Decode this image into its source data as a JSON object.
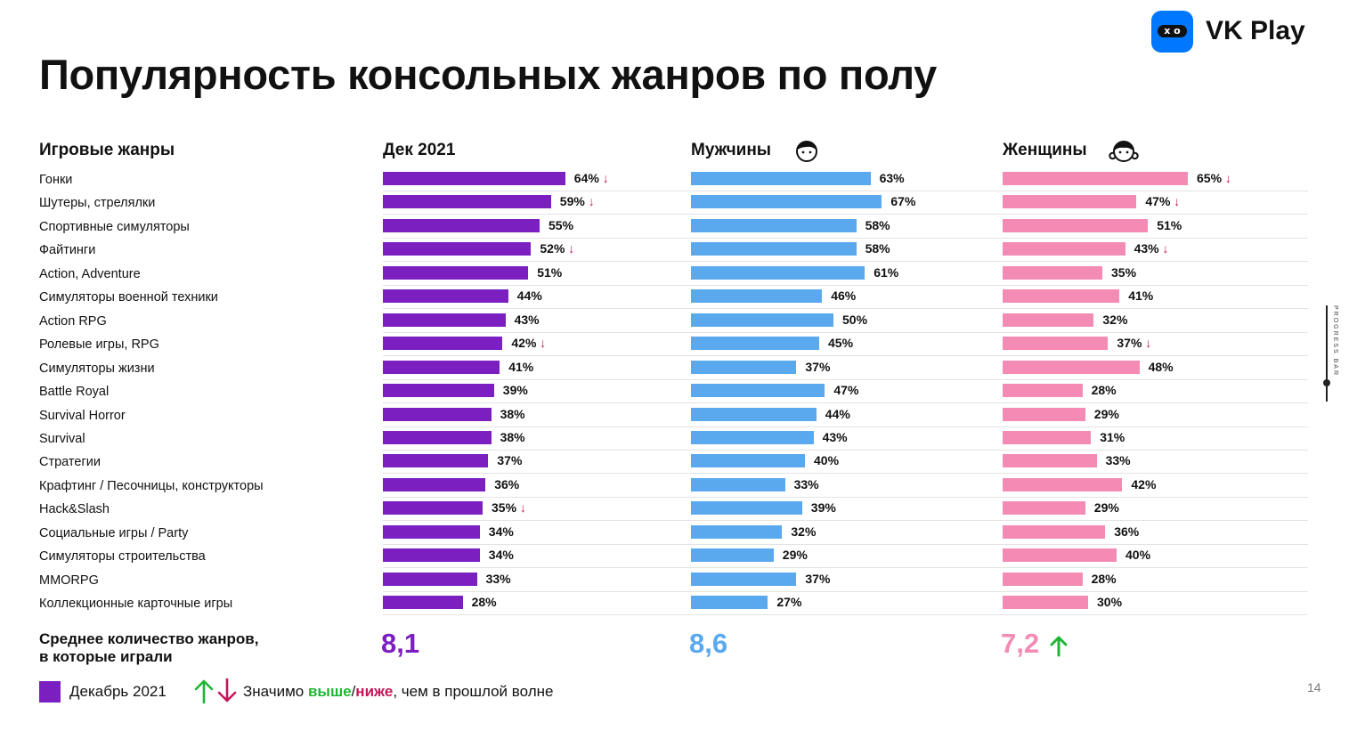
{
  "title": "Популярность консольных жанров по полу",
  "logo": {
    "text": "VK Play",
    "icon": "vk-play-logo-icon",
    "brand_color": "#0077ff"
  },
  "columns": {
    "genres_header": "Игровые жанры",
    "dec_header": "Дек 2021",
    "men_header": "Мужчины",
    "women_header": "Женщины",
    "men_icon": "man-face-icon",
    "women_icon": "woman-face-icon"
  },
  "colors": {
    "dec": "#7b1fc0",
    "men": "#5aa9ee",
    "women": "#f48bb5",
    "up": "#1fb533",
    "down": "#c2185b"
  },
  "chart_data": {
    "type": "bar",
    "orientation": "horizontal",
    "categories": [
      "Гонки",
      "Шутеры, стрелялки",
      "Спортивные симуляторы",
      "Файтинги",
      "Action, Adventure",
      "Симуляторы военной техники",
      "Action RPG",
      "Ролевые игры, RPG",
      "Симуляторы жизни",
      "Battle Royal",
      "Survival Horror",
      "Survival",
      "Стратегии",
      "Крафтинг / Песочницы, конструкторы",
      "Hack&Slash",
      "Социальные игры / Party",
      "Симуляторы строительства",
      "MMORPG",
      "Коллекционные карточные игры"
    ],
    "unit": "%",
    "series": [
      {
        "name": "Дек 2021",
        "values": [
          64,
          59,
          55,
          52,
          51,
          44,
          43,
          42,
          41,
          39,
          38,
          38,
          37,
          36,
          35,
          34,
          34,
          33,
          28
        ],
        "arrows": [
          "down",
          "down",
          "",
          "down",
          "",
          "",
          "",
          "down",
          "",
          "",
          "",
          "",
          "",
          "",
          "down",
          "",
          "",
          "",
          ""
        ]
      },
      {
        "name": "Мужчины",
        "values": [
          63,
          67,
          58,
          58,
          61,
          46,
          50,
          45,
          37,
          47,
          44,
          43,
          40,
          33,
          39,
          32,
          29,
          37,
          27
        ],
        "arrows": [
          "",
          "",
          "",
          "",
          "",
          "",
          "",
          "",
          "",
          "",
          "",
          "",
          "",
          "",
          "",
          "",
          "",
          "",
          ""
        ]
      },
      {
        "name": "Женщины",
        "values": [
          65,
          47,
          51,
          43,
          35,
          41,
          32,
          37,
          48,
          28,
          29,
          31,
          33,
          42,
          29,
          36,
          40,
          28,
          30
        ],
        "arrows": [
          "down",
          "down",
          "",
          "down",
          "",
          "",
          "",
          "down",
          "",
          "",
          "",
          "",
          "",
          "",
          "",
          "",
          "",
          "",
          ""
        ]
      }
    ]
  },
  "average": {
    "label_line1": "Среднее количество жанров,",
    "label_line2": "в которые играли",
    "dec": "8,1",
    "men": "8,6",
    "women": "7,2",
    "women_arrow": "up"
  },
  "legend": {
    "series_label": "Декабрь 2021",
    "note_prefix": "Значимо ",
    "note_higher": "выше",
    "note_slash": "/",
    "note_lower": "ниже",
    "note_suffix": ", чем в прошлой волне"
  },
  "page_number": "14",
  "progress_bar": {
    "label": "PROGRESS BAR"
  }
}
